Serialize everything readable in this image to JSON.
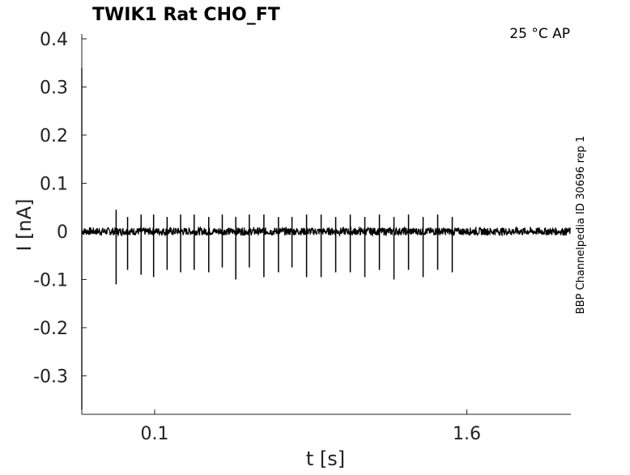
{
  "chart_data": {
    "type": "line",
    "title": "TWIK1  Rat  CHO_FT",
    "annotation": "25 °C  AP",
    "side_note": "BBP Channelpedia ID 30696 rep 1",
    "xlabel": "t [s]",
    "ylabel": "I [nA]",
    "xlim": [
      -0.25,
      2.1
    ],
    "ylim": [
      -0.38,
      0.4
    ],
    "x_ticks": [
      0.1,
      1.6
    ],
    "x_tick_labels": [
      "0.1",
      "1.6"
    ],
    "y_ticks": [
      0.4,
      0.3,
      0.2,
      0.1,
      0,
      -0.1,
      -0.2,
      -0.3
    ],
    "y_tick_labels": [
      "0.4",
      "0.3",
      "0.2",
      "0.1",
      "0",
      "-0.1",
      "-0.2",
      "-0.3"
    ],
    "grid": false,
    "series": [
      {
        "color": "#000000",
        "baseline": 0.0,
        "noise": 0.008,
        "trace_start": -0.25,
        "trace_end": 2.1,
        "initial_transient": {
          "x": -0.25,
          "peak": 0.34,
          "trough": -0.37
        },
        "spikes": [
          {
            "t": -0.085,
            "up": 0.045,
            "down": -0.11
          },
          {
            "t": -0.03,
            "up": 0.03,
            "down": -0.08
          },
          {
            "t": 0.035,
            "up": 0.035,
            "down": -0.09
          },
          {
            "t": 0.095,
            "up": 0.035,
            "down": -0.095
          },
          {
            "t": 0.16,
            "up": 0.03,
            "down": -0.08
          },
          {
            "t": 0.225,
            "up": 0.035,
            "down": -0.085
          },
          {
            "t": 0.29,
            "up": 0.035,
            "down": -0.08
          },
          {
            "t": 0.36,
            "up": 0.03,
            "down": -0.085
          },
          {
            "t": 0.425,
            "up": 0.035,
            "down": -0.075
          },
          {
            "t": 0.49,
            "up": 0.03,
            "down": -0.1
          },
          {
            "t": 0.555,
            "up": 0.035,
            "down": -0.075
          },
          {
            "t": 0.625,
            "up": 0.035,
            "down": -0.095
          },
          {
            "t": 0.695,
            "up": 0.03,
            "down": -0.085
          },
          {
            "t": 0.76,
            "up": 0.03,
            "down": -0.075
          },
          {
            "t": 0.83,
            "up": 0.035,
            "down": -0.095
          },
          {
            "t": 0.9,
            "up": 0.035,
            "down": -0.095
          },
          {
            "t": 0.97,
            "up": 0.03,
            "down": -0.085
          },
          {
            "t": 1.04,
            "up": 0.035,
            "down": -0.085
          },
          {
            "t": 1.11,
            "up": 0.03,
            "down": -0.095
          },
          {
            "t": 1.18,
            "up": 0.035,
            "down": -0.08
          },
          {
            "t": 1.25,
            "up": 0.03,
            "down": -0.1
          },
          {
            "t": 1.32,
            "up": 0.035,
            "down": -0.08
          },
          {
            "t": 1.39,
            "up": 0.03,
            "down": -0.095
          },
          {
            "t": 1.46,
            "up": 0.035,
            "down": -0.08
          },
          {
            "t": 1.53,
            "up": 0.03,
            "down": -0.085
          }
        ]
      }
    ]
  }
}
